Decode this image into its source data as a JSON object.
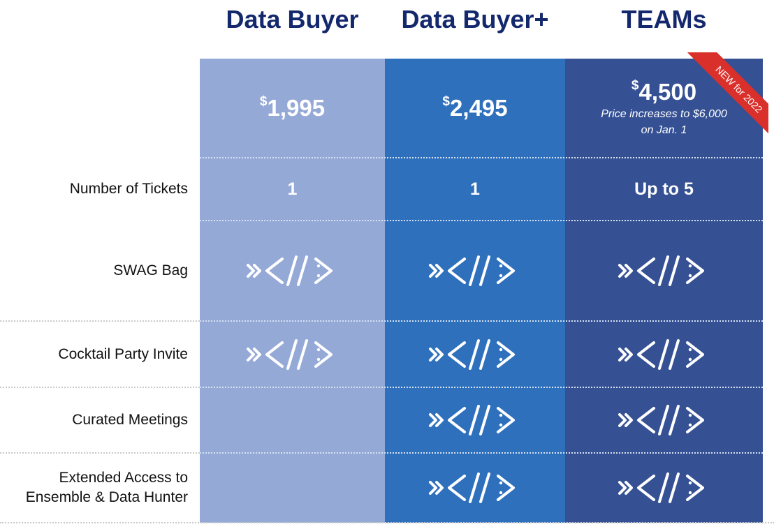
{
  "tiers": [
    {
      "name": "Data Buyer",
      "price_symbol": "$",
      "price_amount": "1,995",
      "tickets": "1"
    },
    {
      "name": "Data Buyer+",
      "price_symbol": "$",
      "price_amount": "2,495",
      "tickets": "1"
    },
    {
      "name": "TEAMs",
      "price_symbol": "$",
      "price_amount": "4,500",
      "price_note_1": "Price increases to $6,000",
      "price_note_2": "on Jan. 1",
      "tickets": "Up to 5",
      "badge": "NEW for 2022"
    }
  ],
  "rows": {
    "tickets": "Number of Tickets",
    "swag": "SWAG Bag",
    "cocktail": "Cocktail Party Invite",
    "meetings": "Curated Meetings",
    "access_1": "Extended Access to",
    "access_2": "Ensemble & Data Hunter"
  },
  "features": {
    "swag": [
      true,
      true,
      true
    ],
    "cocktail": [
      true,
      true,
      true
    ],
    "meetings": [
      false,
      true,
      true
    ],
    "access": [
      false,
      true,
      true
    ]
  },
  "icon_name": "brand-logo-icon",
  "colors": {
    "title": "#14286d",
    "tier_1": "#95a9d7",
    "tier_2": "#2f70bd",
    "tier_3": "#355194",
    "badge": "#d9302c"
  }
}
